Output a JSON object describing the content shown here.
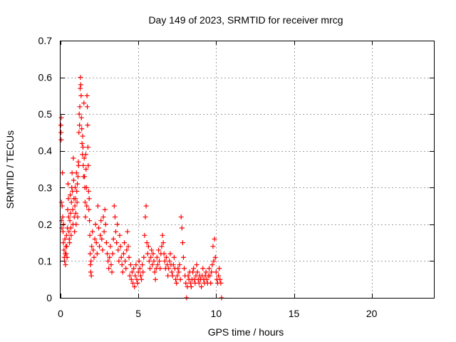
{
  "chart_data": {
    "type": "scatter",
    "title": "Day 149 of 2023, SRMTID for receiver mrcg",
    "xlabel": "GPS time / hours",
    "ylabel": "SRMTID / TECUs",
    "xlim": [
      0,
      24
    ],
    "ylim": [
      0,
      0.7
    ],
    "xticks": [
      0,
      5,
      10,
      15,
      20
    ],
    "yticks": [
      0,
      0.1,
      0.2,
      0.3,
      0.4,
      0.5,
      0.6,
      0.7
    ],
    "ytick_labels": [
      "0",
      "0.1",
      "0.2",
      "0.3",
      "0.4",
      "0.5",
      "0.6",
      "0.7"
    ],
    "grid": true,
    "marker": "+",
    "color": "#ff0000",
    "series": [
      {
        "name": "mrcg",
        "points": [
          [
            0.02,
            0.47
          ],
          [
            0.03,
            0.45
          ],
          [
            0.04,
            0.43
          ],
          [
            0.05,
            0.49
          ],
          [
            0.06,
            0.26
          ],
          [
            0.07,
            0.21
          ],
          [
            0.08,
            0.19
          ],
          [
            0.1,
            0.25
          ],
          [
            0.12,
            0.34
          ],
          [
            0.14,
            0.22
          ],
          [
            0.16,
            0.18
          ],
          [
            0.18,
            0.15
          ],
          [
            0.2,
            0.2
          ],
          [
            0.22,
            0.13
          ],
          [
            0.24,
            0.11
          ],
          [
            0.26,
            0.1
          ],
          [
            0.28,
            0.16
          ],
          [
            0.3,
            0.12
          ],
          [
            0.32,
            0.09
          ],
          [
            0.34,
            0.14
          ],
          [
            0.36,
            0.12
          ],
          [
            0.38,
            0.17
          ],
          [
            0.4,
            0.14
          ],
          [
            0.42,
            0.11
          ],
          [
            0.44,
            0.19
          ],
          [
            0.46,
            0.24
          ],
          [
            0.48,
            0.31
          ],
          [
            0.5,
            0.27
          ],
          [
            0.52,
            0.22
          ],
          [
            0.54,
            0.18
          ],
          [
            0.56,
            0.16
          ],
          [
            0.58,
            0.15
          ],
          [
            0.6,
            0.21
          ],
          [
            0.62,
            0.28
          ],
          [
            0.64,
            0.23
          ],
          [
            0.66,
            0.19
          ],
          [
            0.68,
            0.17
          ],
          [
            0.7,
            0.26
          ],
          [
            0.72,
            0.3
          ],
          [
            0.74,
            0.34
          ],
          [
            0.76,
            0.29
          ],
          [
            0.78,
            0.24
          ],
          [
            0.8,
            0.2
          ],
          [
            0.82,
            0.38
          ],
          [
            0.84,
            0.32
          ],
          [
            0.86,
            0.27
          ],
          [
            0.88,
            0.22
          ],
          [
            0.9,
            0.18
          ],
          [
            0.92,
            0.25
          ],
          [
            0.94,
            0.3
          ],
          [
            0.96,
            0.27
          ],
          [
            0.98,
            0.23
          ],
          [
            1.0,
            0.2
          ],
          [
            1.02,
            0.34
          ],
          [
            1.04,
            0.29
          ],
          [
            1.06,
            0.26
          ],
          [
            1.08,
            0.31
          ],
          [
            1.1,
            0.22
          ],
          [
            1.12,
            0.33
          ],
          [
            1.14,
            0.37
          ],
          [
            1.16,
            0.36
          ],
          [
            1.18,
            0.45
          ],
          [
            1.2,
            0.5
          ],
          [
            1.22,
            0.47
          ],
          [
            1.24,
            0.52
          ],
          [
            1.26,
            0.57
          ],
          [
            1.28,
            0.6
          ],
          [
            1.3,
            0.58
          ],
          [
            1.32,
            0.55
          ],
          [
            1.34,
            0.49
          ],
          [
            1.36,
            0.46
          ],
          [
            1.38,
            0.42
          ],
          [
            1.4,
            0.39
          ],
          [
            1.42,
            0.44
          ],
          [
            1.44,
            0.41
          ],
          [
            1.46,
            0.36
          ],
          [
            1.48,
            0.33
          ],
          [
            1.5,
            0.53
          ],
          [
            1.52,
            0.38
          ],
          [
            1.54,
            0.33
          ],
          [
            1.56,
            0.3
          ],
          [
            1.58,
            0.26
          ],
          [
            1.6,
            0.22
          ],
          [
            1.62,
            0.39
          ],
          [
            1.64,
            0.35
          ],
          [
            1.66,
            0.3
          ],
          [
            1.68,
            0.25
          ],
          [
            1.7,
            0.55
          ],
          [
            1.72,
            0.52
          ],
          [
            1.74,
            0.47
          ],
          [
            1.76,
            0.41
          ],
          [
            1.78,
            0.36
          ],
          [
            1.8,
            0.29
          ],
          [
            1.82,
            0.24
          ],
          [
            1.84,
            0.27
          ],
          [
            1.86,
            0.21
          ],
          [
            1.88,
            0.17
          ],
          [
            1.9,
            0.12
          ],
          [
            1.92,
            0.09
          ],
          [
            1.94,
            0.07
          ],
          [
            1.96,
            0.1
          ],
          [
            1.98,
            0.06
          ],
          [
            2.0,
            0.14
          ],
          [
            2.05,
            0.18
          ],
          [
            2.1,
            0.13
          ],
          [
            2.15,
            0.11
          ],
          [
            2.2,
            0.16
          ],
          [
            2.25,
            0.2
          ],
          [
            2.3,
            0.15
          ],
          [
            2.35,
            0.12
          ],
          [
            2.4,
            0.25
          ],
          [
            2.45,
            0.19
          ],
          [
            2.5,
            0.14
          ],
          [
            2.55,
            0.17
          ],
          [
            2.6,
            0.21
          ],
          [
            2.65,
            0.16
          ],
          [
            2.7,
            0.13
          ],
          [
            2.75,
            0.22
          ],
          [
            2.8,
            0.18
          ],
          [
            2.85,
            0.24
          ],
          [
            2.9,
            0.2
          ],
          [
            2.95,
            0.15
          ],
          [
            3.0,
            0.12
          ],
          [
            3.05,
            0.1
          ],
          [
            3.1,
            0.08
          ],
          [
            3.15,
            0.11
          ],
          [
            3.2,
            0.14
          ],
          [
            3.25,
            0.09
          ],
          [
            3.3,
            0.07
          ],
          [
            3.35,
            0.12
          ],
          [
            3.4,
            0.16
          ],
          [
            3.45,
            0.25
          ],
          [
            3.5,
            0.22
          ],
          [
            3.55,
            0.18
          ],
          [
            3.6,
            0.15
          ],
          [
            3.65,
            0.2
          ],
          [
            3.7,
            0.13
          ],
          [
            3.75,
            0.1
          ],
          [
            3.8,
            0.17
          ],
          [
            3.85,
            0.14
          ],
          [
            3.9,
            0.11
          ],
          [
            3.95,
            0.09
          ],
          [
            4.0,
            0.07
          ],
          [
            4.05,
            0.12
          ],
          [
            4.1,
            0.15
          ],
          [
            4.15,
            0.1
          ],
          [
            4.2,
            0.08
          ],
          [
            4.25,
            0.13
          ],
          [
            4.3,
            0.18
          ],
          [
            4.35,
            0.14
          ],
          [
            4.4,
            0.11
          ],
          [
            4.45,
            0.06
          ],
          [
            4.5,
            0.09
          ],
          [
            4.55,
            0.05
          ],
          [
            4.6,
            0.07
          ],
          [
            4.65,
            0.04
          ],
          [
            4.7,
            0.08
          ],
          [
            4.75,
            0.03
          ],
          [
            4.8,
            0.06
          ],
          [
            4.85,
            0.09
          ],
          [
            4.9,
            0.05
          ],
          [
            4.95,
            0.04
          ],
          [
            5.0,
            0.07
          ],
          [
            5.05,
            0.1
          ],
          [
            5.1,
            0.08
          ],
          [
            5.15,
            0.06
          ],
          [
            5.2,
            0.05
          ],
          [
            5.25,
            0.09
          ],
          [
            5.3,
            0.07
          ],
          [
            5.35,
            0.11
          ],
          [
            5.4,
            0.17
          ],
          [
            5.45,
            0.22
          ],
          [
            5.5,
            0.25
          ],
          [
            5.55,
            0.15
          ],
          [
            5.6,
            0.12
          ],
          [
            5.65,
            0.14
          ],
          [
            5.7,
            0.1
          ],
          [
            5.75,
            0.08
          ],
          [
            5.8,
            0.11
          ],
          [
            5.85,
            0.13
          ],
          [
            5.9,
            0.09
          ],
          [
            5.95,
            0.12
          ],
          [
            6.0,
            0.1
          ],
          [
            6.05,
            0.07
          ],
          [
            6.1,
            0.05
          ],
          [
            6.15,
            0.08
          ],
          [
            6.2,
            0.11
          ],
          [
            6.25,
            0.09
          ],
          [
            6.3,
            0.13
          ],
          [
            6.35,
            0.1
          ],
          [
            6.4,
            0.08
          ],
          [
            6.45,
            0.12
          ],
          [
            6.5,
            0.14
          ],
          [
            6.55,
            0.17
          ],
          [
            6.6,
            0.15
          ],
          [
            6.65,
            0.12
          ],
          [
            6.7,
            0.1
          ],
          [
            6.75,
            0.08
          ],
          [
            6.8,
            0.11
          ],
          [
            6.85,
            0.09
          ],
          [
            6.9,
            0.06
          ],
          [
            6.95,
            0.08
          ],
          [
            7.0,
            0.1
          ],
          [
            7.05,
            0.12
          ],
          [
            7.1,
            0.09
          ],
          [
            7.15,
            0.07
          ],
          [
            7.2,
            0.06
          ],
          [
            7.25,
            0.09
          ],
          [
            7.3,
            0.11
          ],
          [
            7.35,
            0.08
          ],
          [
            7.4,
            0.05
          ],
          [
            7.45,
            0.04
          ],
          [
            7.5,
            0.06
          ],
          [
            7.55,
            0.08
          ],
          [
            7.6,
            0.07
          ],
          [
            7.65,
            0.09
          ],
          [
            7.7,
            0.05
          ],
          [
            7.75,
            0.22
          ],
          [
            7.8,
            0.19
          ],
          [
            7.85,
            0.15
          ],
          [
            7.9,
            0.11
          ],
          [
            7.95,
            0.08
          ],
          [
            8.0,
            0.06
          ],
          [
            8.05,
            0.04
          ],
          [
            8.1,
            0.0
          ],
          [
            8.15,
            0.03
          ],
          [
            8.2,
            0.06
          ],
          [
            8.25,
            0.05
          ],
          [
            8.3,
            0.07
          ],
          [
            8.35,
            0.04
          ],
          [
            8.4,
            0.03
          ],
          [
            8.45,
            0.05
          ],
          [
            8.5,
            0.07
          ],
          [
            8.55,
            0.08
          ],
          [
            8.6,
            0.05
          ],
          [
            8.65,
            0.04
          ],
          [
            8.7,
            0.06
          ],
          [
            8.75,
            0.09
          ],
          [
            8.8,
            0.07
          ],
          [
            8.85,
            0.05
          ],
          [
            8.9,
            0.04
          ],
          [
            8.95,
            0.06
          ],
          [
            9.0,
            0.05
          ],
          [
            9.05,
            0.03
          ],
          [
            9.1,
            0.06
          ],
          [
            9.15,
            0.08
          ],
          [
            9.2,
            0.05
          ],
          [
            9.25,
            0.04
          ],
          [
            9.3,
            0.06
          ],
          [
            9.35,
            0.07
          ],
          [
            9.4,
            0.05
          ],
          [
            9.45,
            0.04
          ],
          [
            9.5,
            0.06
          ],
          [
            9.55,
            0.08
          ],
          [
            9.6,
            0.06
          ],
          [
            9.65,
            0.04
          ],
          [
            9.7,
            0.07
          ],
          [
            9.75,
            0.09
          ],
          [
            9.8,
            0.14
          ],
          [
            9.85,
            0.1
          ],
          [
            9.9,
            0.16
          ],
          [
            9.95,
            0.11
          ],
          [
            10.0,
            0.07
          ],
          [
            10.05,
            0.05
          ],
          [
            10.1,
            0.04
          ],
          [
            10.15,
            0.06
          ],
          [
            10.2,
            0.08
          ],
          [
            10.25,
            0.05
          ],
          [
            10.3,
            0.04
          ],
          [
            10.35,
            0.0
          ]
        ]
      }
    ]
  }
}
